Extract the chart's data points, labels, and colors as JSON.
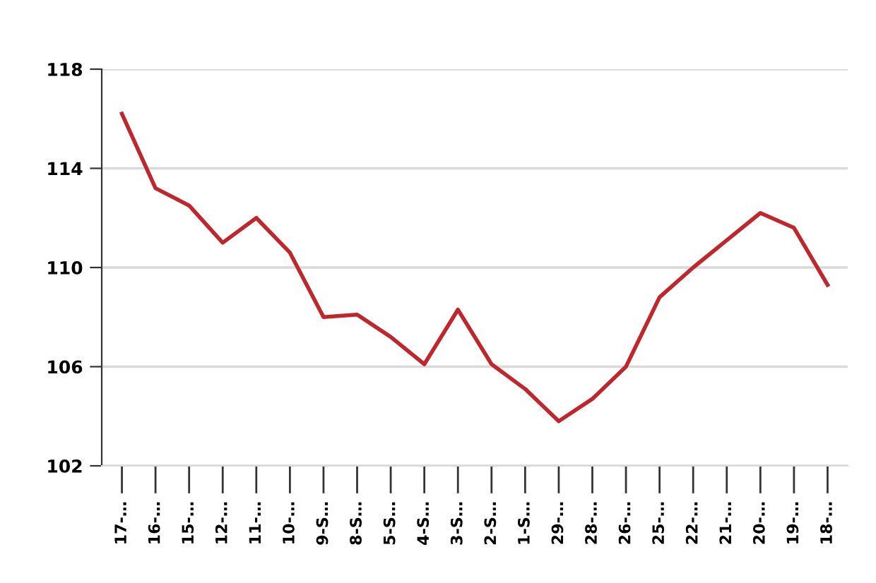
{
  "chart_data": {
    "type": "line",
    "categories": [
      "17-…",
      "16-…",
      "15-…",
      "12-…",
      "11-…",
      "10-…",
      "9-S…",
      "8-S…",
      "5-S…",
      "4-S…",
      "3-S…",
      "2-S…",
      "1-S…",
      "29-…",
      "28-…",
      "26-…",
      "25-…",
      "22-…",
      "21-…",
      "20-…",
      "19-…",
      "18-…"
    ],
    "series": [
      {
        "color": "#c0272d",
        "values": [
          116.2,
          113.2,
          112.5,
          111.0,
          112.0,
          110.6,
          108.0,
          108.1,
          107.2,
          106.1,
          108.3,
          106.1,
          105.1,
          103.8,
          104.7,
          106.0,
          108.8,
          110.0,
          111.1,
          112.2,
          111.6,
          109.3
        ]
      }
    ],
    "ylim": [
      102,
      118
    ],
    "yticks": [
      102,
      106,
      110,
      114,
      118
    ],
    "grid": "y",
    "legend": false,
    "marker": "none",
    "line_style": "solid"
  }
}
